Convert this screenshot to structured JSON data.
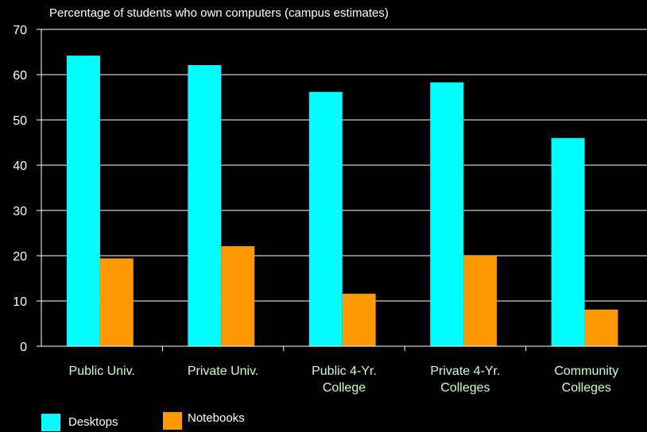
{
  "colors": {
    "background": "#000000",
    "desktops": "#00ffff",
    "notebooks": "#ff9900",
    "axis": "#ffffff",
    "grid": "#ffffff",
    "category_text": "#ccffcc"
  },
  "chart_data": {
    "type": "bar",
    "title": "Percentage of students who own computers (campus estimates)",
    "categories": [
      [
        "Public Univ."
      ],
      [
        "Private Univ."
      ],
      [
        "Public 4-Yr.",
        "College"
      ],
      [
        "Private 4-Yr.",
        "Colleges"
      ],
      [
        "Community",
        "Colleges"
      ]
    ],
    "series": [
      {
        "name": "Desktops",
        "values": [
          64.2,
          62.1,
          56.2,
          58.3,
          46.0
        ]
      },
      {
        "name": "Notebooks",
        "values": [
          19.4,
          22.1,
          11.6,
          20.0,
          8.1
        ]
      }
    ],
    "ylim": [
      0,
      70
    ],
    "yticks": [
      0,
      10,
      20,
      30,
      40,
      50,
      60,
      70
    ],
    "grid": true,
    "legend": "bottom-left"
  }
}
